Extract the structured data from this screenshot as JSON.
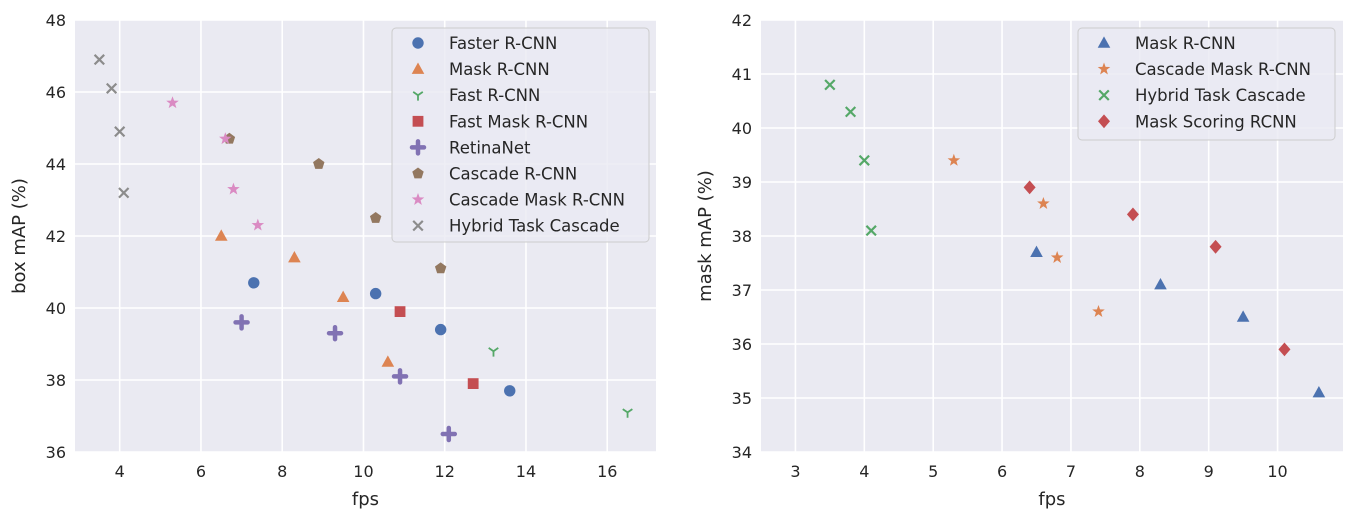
{
  "chart_data": [
    {
      "type": "scatter",
      "xlabel": "fps",
      "ylabel": "box mAP (%)",
      "xlim": [
        2.9,
        17.2
      ],
      "ylim": [
        36,
        48
      ],
      "xticks": [
        4,
        6,
        8,
        10,
        12,
        14,
        16
      ],
      "yticks": [
        36,
        38,
        40,
        42,
        44,
        46,
        48
      ],
      "grid": true,
      "legend_position": "top-right",
      "series": [
        {
          "name": "Faster R-CNN",
          "marker": "circle",
          "color": "#4c72b0",
          "points": [
            [
              7.3,
              40.7
            ],
            [
              10.3,
              40.4
            ],
            [
              11.9,
              39.4
            ],
            [
              13.6,
              37.7
            ]
          ]
        },
        {
          "name": "Mask R-CNN",
          "marker": "triangle",
          "color": "#dd8452",
          "points": [
            [
              6.5,
              42.0
            ],
            [
              8.3,
              41.4
            ],
            [
              9.5,
              40.3
            ],
            [
              10.6,
              38.5
            ]
          ]
        },
        {
          "name": "Fast R-CNN",
          "marker": "tri-down",
          "color": "#55a868",
          "points": [
            [
              13.2,
              38.8
            ],
            [
              16.5,
              37.1
            ]
          ]
        },
        {
          "name": "Fast Mask R-CNN",
          "marker": "square",
          "color": "#c44e52",
          "points": [
            [
              10.9,
              39.9
            ],
            [
              12.7,
              37.9
            ]
          ]
        },
        {
          "name": "RetinaNet",
          "marker": "plus",
          "color": "#8172b3",
          "points": [
            [
              7.0,
              39.6
            ],
            [
              9.3,
              39.3
            ],
            [
              10.9,
              38.1
            ],
            [
              12.1,
              36.5
            ]
          ]
        },
        {
          "name": "Cascade R-CNN",
          "marker": "pentagon",
          "color": "#937860",
          "points": [
            [
              6.7,
              44.7
            ],
            [
              8.9,
              44.0
            ],
            [
              10.3,
              42.5
            ],
            [
              11.9,
              41.1
            ]
          ]
        },
        {
          "name": "Cascade Mask R-CNN",
          "marker": "star",
          "color": "#da8bc3",
          "points": [
            [
              5.3,
              45.7
            ],
            [
              6.6,
              44.7
            ],
            [
              6.8,
              43.3
            ],
            [
              7.4,
              42.3
            ]
          ]
        },
        {
          "name": "Hybrid Task Cascade",
          "marker": "x",
          "color": "#8c8c8c",
          "points": [
            [
              3.5,
              46.9
            ],
            [
              3.8,
              46.1
            ],
            [
              4.0,
              44.9
            ],
            [
              4.1,
              43.2
            ]
          ]
        }
      ]
    },
    {
      "type": "scatter",
      "xlabel": "fps",
      "ylabel": "mask mAP (%)",
      "xlim": [
        2.5,
        10.95
      ],
      "ylim": [
        34,
        42
      ],
      "xticks": [
        3,
        4,
        5,
        6,
        7,
        8,
        9,
        10
      ],
      "yticks": [
        34,
        35,
        36,
        37,
        38,
        39,
        40,
        41,
        42
      ],
      "grid": true,
      "legend_position": "top-right",
      "series": [
        {
          "name": "Mask R-CNN",
          "marker": "triangle",
          "color": "#4c72b0",
          "points": [
            [
              6.5,
              37.7
            ],
            [
              8.3,
              37.1
            ],
            [
              9.5,
              36.5
            ],
            [
              10.6,
              35.1
            ]
          ]
        },
        {
          "name": "Cascade Mask R-CNN",
          "marker": "star",
          "color": "#dd8452",
          "points": [
            [
              5.3,
              39.4
            ],
            [
              6.6,
              38.6
            ],
            [
              6.8,
              37.6
            ],
            [
              7.4,
              36.6
            ]
          ]
        },
        {
          "name": "Hybrid Task Cascade",
          "marker": "x",
          "color": "#55a868",
          "points": [
            [
              3.5,
              40.8
            ],
            [
              3.8,
              40.3
            ],
            [
              4.0,
              39.4
            ],
            [
              4.1,
              38.1
            ]
          ]
        },
        {
          "name": "Mask Scoring RCNN",
          "marker": "diamond",
          "color": "#c44e52",
          "points": [
            [
              6.4,
              38.9
            ],
            [
              7.9,
              38.4
            ],
            [
              9.1,
              37.8
            ],
            [
              10.1,
              35.9
            ]
          ]
        }
      ]
    }
  ]
}
